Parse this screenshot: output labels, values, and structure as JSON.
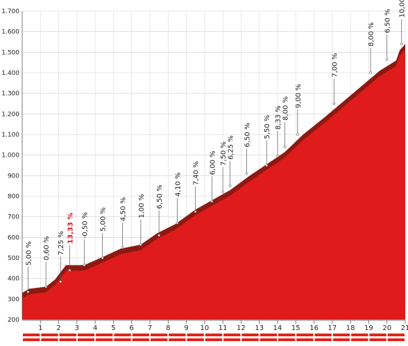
{
  "chart_data": {
    "type": "area",
    "title": "",
    "xlabel": "",
    "ylabel": "",
    "xlim": [
      0,
      21
    ],
    "ylim": [
      200,
      1700
    ],
    "y_ticks": [
      "200",
      "300",
      "400",
      "500",
      "600",
      "700",
      "800",
      "900",
      "1.000",
      "1.100",
      "1.200",
      "1.300",
      "1.400",
      "1.500",
      "1.600",
      "1.700"
    ],
    "y_tick_values": [
      200,
      300,
      400,
      500,
      600,
      700,
      800,
      900,
      1000,
      1100,
      1200,
      1300,
      1400,
      1500,
      1600,
      1700
    ],
    "x_ticks": [
      "1",
      "2",
      "3",
      "4",
      "5",
      "6",
      "7",
      "8",
      "9",
      "10",
      "11",
      "12",
      "13",
      "14",
      "15",
      "16",
      "17",
      "18",
      "19",
      "20",
      "21"
    ],
    "x_tick_values": [
      1,
      2,
      3,
      4,
      5,
      6,
      7,
      8,
      9,
      10,
      11,
      12,
      13,
      14,
      15,
      16,
      17,
      18,
      19,
      20,
      21
    ],
    "grid": true,
    "colors": {
      "fill": "#e01b1b",
      "edge": "#8c1a12",
      "text": "#222222",
      "highlight": "#e2131c"
    },
    "profile": [
      {
        "x": 0.0,
        "y": 330
      },
      {
        "x": 0.38,
        "y": 350
      },
      {
        "x": 1.3,
        "y": 360
      },
      {
        "x": 1.8,
        "y": 395
      },
      {
        "x": 2.4,
        "y": 465
      },
      {
        "x": 3.4,
        "y": 465
      },
      {
        "x": 4.3,
        "y": 500
      },
      {
        "x": 5.4,
        "y": 545
      },
      {
        "x": 6.5,
        "y": 565
      },
      {
        "x": 7.4,
        "y": 620
      },
      {
        "x": 8.4,
        "y": 665
      },
      {
        "x": 9.5,
        "y": 735
      },
      {
        "x": 10.4,
        "y": 780
      },
      {
        "x": 11.4,
        "y": 830
      },
      {
        "x": 12.4,
        "y": 895
      },
      {
        "x": 13.4,
        "y": 955
      },
      {
        "x": 14.4,
        "y": 1015
      },
      {
        "x": 15.4,
        "y": 1100
      },
      {
        "x": 16.6,
        "y": 1185
      },
      {
        "x": 17.6,
        "y": 1260
      },
      {
        "x": 18.6,
        "y": 1335
      },
      {
        "x": 19.6,
        "y": 1410
      },
      {
        "x": 20.5,
        "y": 1460
      },
      {
        "x": 20.7,
        "y": 1510
      },
      {
        "x": 21.0,
        "y": 1540
      }
    ],
    "gradients": [
      {
        "label": "5,00 %",
        "x": 0.32,
        "y": 335,
        "highlight": false
      },
      {
        "label": "0,60 %",
        "x": 1.3,
        "y": 360,
        "highlight": false
      },
      {
        "label": "7,25 %",
        "x": 2.1,
        "y": 385,
        "highlight": false
      },
      {
        "label": "13,33 %",
        "x": 2.6,
        "y": 440,
        "highlight": true
      },
      {
        "label": "-0,50 %",
        "x": 3.4,
        "y": 465,
        "highlight": false
      },
      {
        "label": "5,00 %",
        "x": 4.4,
        "y": 500,
        "highlight": false
      },
      {
        "label": "4,50 %",
        "x": 5.5,
        "y": 550,
        "highlight": false
      },
      {
        "label": "1,00 %",
        "x": 6.5,
        "y": 565,
        "highlight": false
      },
      {
        "label": "6,50 %",
        "x": 7.5,
        "y": 610,
        "highlight": false
      },
      {
        "label": "4,10 %",
        "x": 8.5,
        "y": 670,
        "highlight": false
      },
      {
        "label": "7,40 %",
        "x": 9.5,
        "y": 725,
        "highlight": false
      },
      {
        "label": "6,00 %",
        "x": 10.4,
        "y": 775,
        "highlight": false
      },
      {
        "label": "7,50 %",
        "x": 11.0,
        "y": 820,
        "highlight": false
      },
      {
        "label": "6,25 %",
        "x": 11.4,
        "y": 850,
        "highlight": false
      },
      {
        "label": "6,50 %",
        "x": 12.3,
        "y": 910,
        "highlight": false
      },
      {
        "label": "5,50 %",
        "x": 13.4,
        "y": 950,
        "highlight": false
      },
      {
        "label": "8,33 %",
        "x": 14.0,
        "y": 995,
        "highlight": false
      },
      {
        "label": "8,00 %",
        "x": 14.4,
        "y": 1040,
        "highlight": false
      },
      {
        "label": "9,00 %",
        "x": 15.1,
        "y": 1100,
        "highlight": false
      },
      {
        "label": "7,00 %",
        "x": 17.1,
        "y": 1250,
        "highlight": false
      },
      {
        "label": "8,00 %",
        "x": 19.1,
        "y": 1400,
        "highlight": false
      },
      {
        "label": "6,50 %",
        "x": 20.0,
        "y": 1465,
        "highlight": false
      },
      {
        "label": "10,00 %",
        "x": 20.8,
        "y": 1540,
        "highlight": false
      }
    ]
  }
}
